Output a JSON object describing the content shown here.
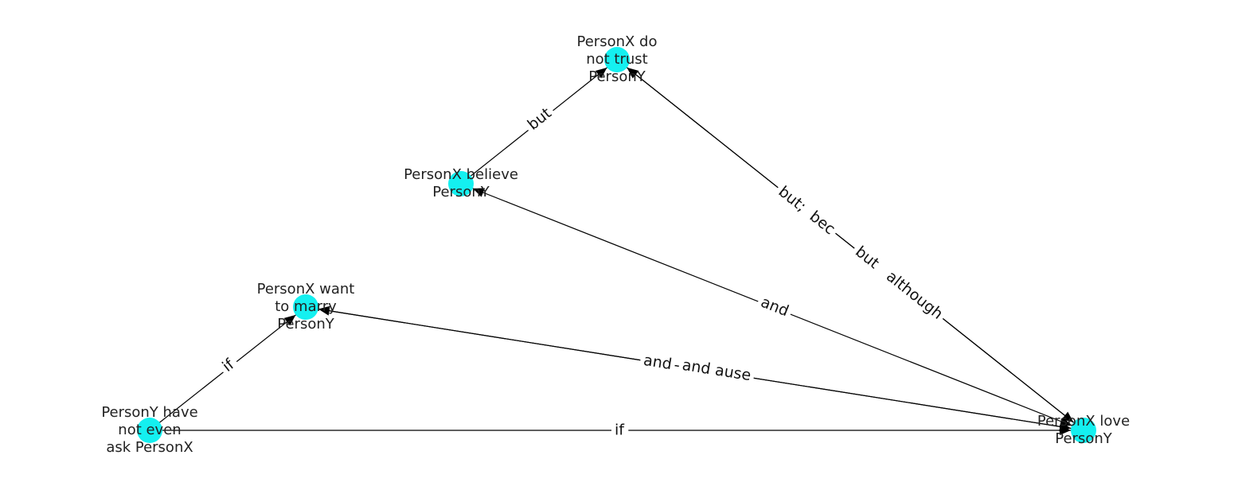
{
  "graph": {
    "node_color": "#14f0f0",
    "edge_color": "#000000",
    "nodes": [
      {
        "id": "n_trust",
        "lines": [
          "PersonX do",
          "not trust",
          "PersonY"
        ]
      },
      {
        "id": "n_believe",
        "lines": [
          "PersonX believe",
          "PersonY"
        ]
      },
      {
        "id": "n_marry",
        "lines": [
          "PersonX want",
          "to marry",
          "PersonY"
        ]
      },
      {
        "id": "n_ask",
        "lines": [
          "PersonY have",
          "not even",
          "ask PersonX"
        ]
      },
      {
        "id": "n_love",
        "lines": [
          "PersonX love",
          "PersonY"
        ]
      }
    ],
    "edges": [
      {
        "from": "n_believe",
        "to": "n_trust",
        "label": "but"
      },
      {
        "from": "n_love",
        "to": "n_trust",
        "label": "but;  bec",
        "bidirectional": true
      },
      {
        "from": "n_love",
        "to": "n_trust",
        "label": "but   although"
      },
      {
        "from": "n_believe",
        "to": "n_love",
        "label": "and",
        "bidirectional": true
      },
      {
        "from": "n_ask",
        "to": "n_marry",
        "label": "if"
      },
      {
        "from": "n_marry",
        "to": "n_love",
        "label": "and",
        "bidirectional": true
      },
      {
        "from": "n_marry",
        "to": "n_love",
        "label": "and ause"
      },
      {
        "from": "n_ask",
        "to": "n_love",
        "label": "if"
      }
    ]
  }
}
